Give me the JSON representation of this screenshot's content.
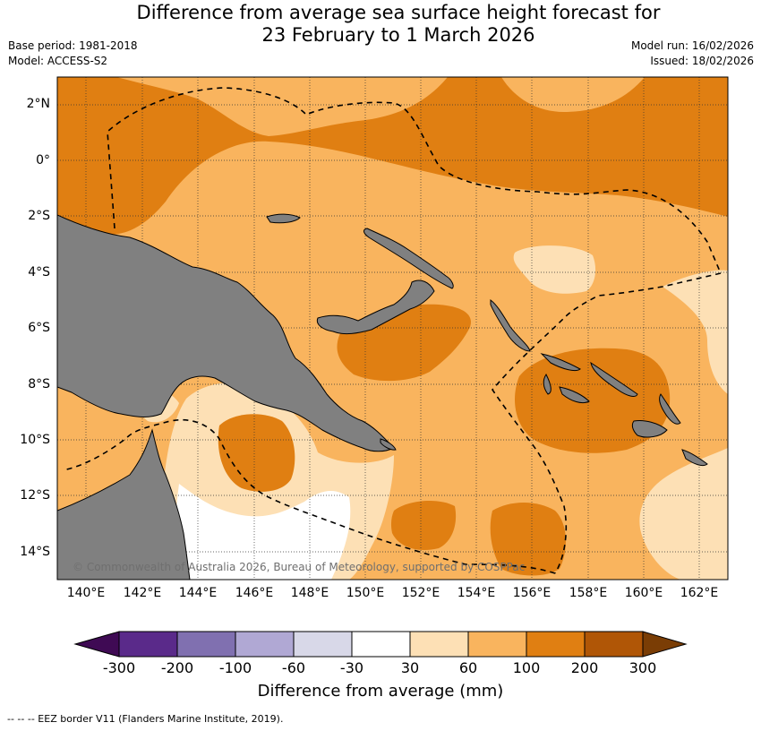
{
  "header": {
    "title_line1": "Difference from average sea surface height forecast for",
    "title_line2": "23 February to 1 March 2026",
    "base_period": "Base period: 1981-2018",
    "model": "Model: ACCESS-S2",
    "model_run": "Model run: 16/02/2026",
    "issued": "Issued: 18/02/2026"
  },
  "map": {
    "lat_labels": [
      "2°N",
      "0°",
      "2°S",
      "4°S",
      "6°S",
      "8°S",
      "10°S",
      "12°S",
      "14°S"
    ],
    "lon_labels": [
      "140°E",
      "142°E",
      "144°E",
      "146°E",
      "148°E",
      "150°E",
      "152°E",
      "154°E",
      "156°E",
      "158°E",
      "160°E",
      "162°E"
    ],
    "copyright": "© Commonwealth of Australia 2026, Bureau of Meteorology, supported by COSPPac",
    "land_color": "#808080"
  },
  "colorbar": {
    "title": "Difference from average (mm)",
    "labels": [
      "-300",
      "-200",
      "-100",
      "-60",
      "-30",
      "30",
      "60",
      "100",
      "200",
      "300"
    ],
    "colors": [
      "#3f0a54",
      "#5a2a8a",
      "#8070b0",
      "#b0a8d4",
      "#d8d8e8",
      "#ffffff",
      "#fde0b5",
      "#f9b45e",
      "#e07f12",
      "#b05606",
      "#7a3d05"
    ]
  },
  "footer": {
    "eez_note": "--  --  -- EEZ border V11 (Flanders Marine Institute, 2019)."
  }
}
